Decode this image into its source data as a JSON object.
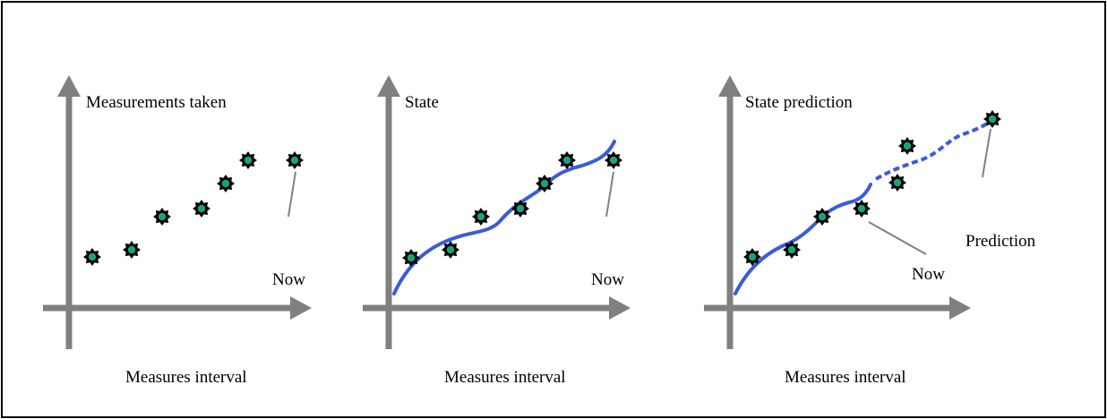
{
  "colors": {
    "axis": "#808080",
    "state_curve": "#3b5bdb",
    "marker_fill": "#1aa37a",
    "marker_outline": "#000000",
    "leader_line": "#808080"
  },
  "panels": [
    {
      "title": "Measurements taken",
      "now_label": "Now",
      "x_label": "Measures interval"
    },
    {
      "title": "State",
      "now_label": "Now",
      "x_label": "Measures interval"
    },
    {
      "title": "State prediction",
      "now_label": "Now",
      "prediction_label": "Prediction",
      "x_label": "Measures interval"
    }
  ]
}
